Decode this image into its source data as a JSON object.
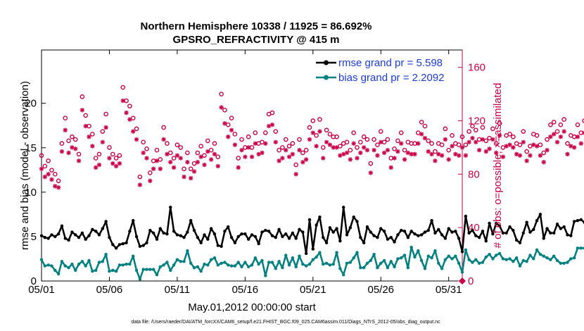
{
  "colors": {
    "rmse": "#000000",
    "bias": "#008080",
    "obs": "#cc0044",
    "legend_text": "#1a3cd9",
    "axis": "#000000"
  },
  "chart_data": {
    "type": "line",
    "title_line1": "Northern Hemisphere 10338 / 11925 = 86.692%",
    "title_line2": "GPSRO_REFRACTIVITY @ 415 m",
    "xlabel": "May.01,2012 00:00:00 start",
    "ylabel_left": "rmse and bias (model - observation)",
    "ylabel_right": "# of obs: o=possible; ×=assimilated",
    "footer": "data file: /Users/raeder/DAI/ATM_forcXX/CAM6_setup/f.e21.FHIST_BGC.f09_025.CAM6assim.011/Diags_NTrS_2012-05/obs_diag_output.nc",
    "x_tick_labels": [
      "05/01",
      "05/06",
      "05/11",
      "05/16",
      "05/21",
      "05/26",
      "05/31"
    ],
    "x_tick_values": [
      0,
      5,
      10,
      15,
      20,
      25,
      30
    ],
    "xlim": [
      0,
      31
    ],
    "ylim_left": [
      0,
      26
    ],
    "y_ticks_left": [
      "0",
      "5",
      "10",
      "15",
      "20"
    ],
    "y_tick_values_left": [
      0,
      5,
      10,
      15,
      20
    ],
    "ylim_right": [
      0,
      173
    ],
    "y_ticks_right": [
      "0",
      "40",
      "80",
      "120",
      "160"
    ],
    "y_tick_values_right": [
      0,
      40,
      80,
      120,
      160
    ],
    "legend": [
      "rmse grand pr = 5.598",
      "bias grand pr = 2.2092"
    ],
    "series": [
      {
        "name": "rmse",
        "x_start": 0,
        "x_step": 0.25,
        "values": [
          5.1,
          4.9,
          4.8,
          5.2,
          5.0,
          5.3,
          6.2,
          4.8,
          4.6,
          5.5,
          5.2,
          4.9,
          5.4,
          4.7,
          5.1,
          5.8,
          5.6,
          5.2,
          5.9,
          6.7,
          4.9,
          4.1,
          3.7,
          4.1,
          4.2,
          4.3,
          5.6,
          6.8,
          5.0,
          3.9,
          4.0,
          4.3,
          5.7,
          5.4,
          4.7,
          5.9,
          5.4,
          5.3,
          8.3,
          5.6,
          5.2,
          5.1,
          4.9,
          5.5,
          6.8,
          5.7,
          4.9,
          4.3,
          5.2,
          4.7,
          5.9,
          5.3,
          4.0,
          3.9,
          5.6,
          6.1,
          4.9,
          4.3,
          5.0,
          5.3,
          5.3,
          4.7,
          5.2,
          5.0,
          4.2,
          5.5,
          5.7,
          5.6,
          5.1,
          4.9,
          5.8,
          5.0,
          5.3,
          4.8,
          5.4,
          4.8,
          5.8,
          5.5,
          3.1,
          6.9,
          3.6,
          6.3,
          7.2,
          4.9,
          4.3,
          6.0,
          5.5,
          5.9,
          4.5,
          8.3,
          5.2,
          6.0,
          7.2,
          6.7,
          4.9,
          4.3,
          6.1,
          5.5,
          5.1,
          4.9,
          5.9,
          5.6,
          4.7,
          4.9,
          4.4,
          5.2,
          5.7,
          5.6,
          4.9,
          5.6,
          5.3,
          5.1,
          5.2,
          5.5,
          5.7,
          6.8,
          5.4,
          5.8,
          5.2,
          4.8,
          5.9,
          5.5,
          5.6,
          4.8,
          3.3,
          7.3,
          5.4,
          5.7,
          5.1,
          4.9,
          5.6,
          4.5,
          6.5,
          5.3,
          6.5,
          6.2,
          5.4,
          5.4,
          6.1,
          5.7,
          4.6,
          4.3,
          5.4,
          6.6,
          5.5,
          5.8,
          6.8,
          7.5,
          4.8,
          5.9,
          5.4,
          5.4,
          6.4,
          5.9,
          6.1,
          5.2,
          5.1,
          6.7,
          6.8,
          6.9,
          6.6,
          4.7,
          4.8
        ]
      },
      {
        "name": "bias",
        "x_start": 0,
        "x_step": 0.25,
        "values": [
          2.4,
          1.7,
          1.8,
          1.7,
          1.2,
          0.8,
          2.2,
          1.7,
          1.5,
          1.9,
          1.2,
          1.9,
          2.2,
          1.7,
          2.3,
          1.1,
          1.2,
          2.1,
          2.2,
          3.0,
          1.1,
          1.2,
          1.1,
          1.8,
          1.8,
          1.9,
          1.9,
          2.8,
          1.2,
          0.2,
          1.3,
          1.3,
          1.3,
          1.3,
          0.7,
          1.6,
          1.8,
          2.1,
          1.2,
          1.8,
          2.4,
          2.2,
          2.2,
          3.4,
          2.0,
          1.5,
          1.6,
          1.1,
          1.9,
          1.8,
          2.4,
          2.6,
          1.8,
          2.0,
          2.1,
          1.8,
          1.7,
          1.7,
          2.1,
          1.6,
          2.1,
          1.6,
          1.8,
          2.6,
          1.9,
          2.3,
          0.6,
          2.1,
          2.1,
          1.4,
          2.2,
          1.5,
          2.9,
          1.8,
          2.6,
          1.6,
          2.8,
          1.9,
          1.7,
          1.9,
          2.4,
          2.7,
          3.2,
          1.9,
          2.0,
          1.8,
          1.9,
          3.2,
          1.4,
          0.7,
          2.0,
          2.1,
          2.6,
          3.2,
          1.5,
          1.5,
          2.0,
          2.3,
          3.0,
          1.5,
          2.0,
          2.3,
          1.5,
          2.2,
          1.6,
          2.5,
          2.6,
          2.9,
          1.5,
          3.8,
          2.7,
          3.4,
          2.3,
          1.4,
          2.8,
          2.6,
          3.4,
          2.0,
          1.4,
          2.4,
          2.8,
          2.5,
          2.8,
          2.0,
          1.0,
          3.5,
          2.4,
          2.1,
          2.4,
          2.0,
          2.1,
          2.7,
          3.0,
          2.5,
          2.9,
          3.1,
          2.5,
          2.4,
          2.5,
          2.2,
          2.6,
          1.7,
          2.3,
          2.2,
          2.9,
          2.5,
          3.5,
          3.0,
          2.8,
          2.6,
          2.4,
          2.8,
          2.3,
          2.0,
          2.0,
          2.1,
          2.5,
          2.6,
          3.7,
          3.7,
          3.7,
          2.5,
          2.5,
          2.5
        ]
      },
      {
        "name": "possible",
        "x_start": 0,
        "x_step": 0.25,
        "values": [
          94,
          86,
          90,
          83,
          80,
          75,
          103,
          122,
          105,
          108,
          106,
          95,
          138,
          124,
          116,
          110,
          92,
          95,
          112,
          125,
          100,
          95,
          92,
          94,
          145,
          135,
          131,
          122,
          114,
          78,
          104,
          99,
          81,
          90,
          98,
          91,
          115,
          103,
          96,
          92,
          102,
          100,
          84,
          96,
          84,
          88,
          96,
          101,
          94,
          105,
          98,
          103,
          93,
          140,
          128,
          117,
          122,
          110,
          92,
          106,
          100,
          108,
          100,
          111,
          103,
          104,
          111,
          125,
          126,
          112,
          98,
          100,
          106,
          101,
          103,
          87,
          106,
          96,
          98,
          115,
          120,
          109,
          121,
          100,
          113,
          110,
          108,
          108,
          101,
          103,
          104,
          98,
          111,
          100,
          104,
          108,
          106,
          88,
          106,
          102,
          112,
          104,
          106,
          92,
          99,
          105,
          111,
          98,
          104,
          103,
          103,
          111,
          119,
          116,
          105,
          103,
          97,
          103,
          102,
          114,
          98,
          109,
          103,
          102,
          108,
          102,
          112,
          116,
          113,
          106,
          115,
          105,
          107,
          114,
          103,
          118,
          100,
          109,
          110,
          108,
          103,
          102,
          112,
          97,
          101,
          110,
          109,
          102,
          96,
          106,
          117,
          119,
          112,
          117,
          121,
          103,
          109,
          108,
          117,
          111,
          120,
          100,
          84
        ]
      },
      {
        "name": "assimilated",
        "x_start": 0,
        "x_step": 0.25,
        "values": [
          84,
          78,
          80,
          76,
          71,
          70,
          97,
          113,
          96,
          100,
          99,
          90,
          128,
          116,
          108,
          101,
          85,
          87,
          104,
          115,
          92,
          88,
          86,
          88,
          135,
          126,
          121,
          112,
          106,
          72,
          96,
          92,
          75,
          84,
          90,
          84,
          106,
          95,
          89,
          85,
          94,
          92,
          78,
          89,
          77,
          82,
          89,
          93,
          87,
          97,
          91,
          95,
          86,
          130,
          118,
          108,
          113,
          102,
          85,
          98,
          93,
          100,
          93,
          103,
          95,
          96,
          103,
          116,
          117,
          104,
          90,
          92,
          98,
          93,
          95,
          80,
          98,
          89,
          91,
          106,
          111,
          101,
          112,
          92,
          104,
          102,
          100,
          100,
          94,
          95,
          96,
          91,
          103,
          92,
          96,
          100,
          98,
          81,
          98,
          94,
          104,
          96,
          98,
          85,
          92,
          97,
          103,
          91,
          96,
          95,
          95,
          103,
          110,
          107,
          97,
          95,
          90,
          95,
          94,
          106,
          91,
          101,
          95,
          94,
          100,
          94,
          104,
          107,
          104,
          98,
          106,
          97,
          99,
          106,
          96,
          109,
          93,
          101,
          102,
          100,
          95,
          94,
          104,
          90,
          94,
          102,
          101,
          94,
          89,
          98,
          108,
          110,
          104,
          108,
          112,
          95,
          101,
          100,
          108,
          103,
          111,
          92,
          78
        ]
      }
    ]
  }
}
